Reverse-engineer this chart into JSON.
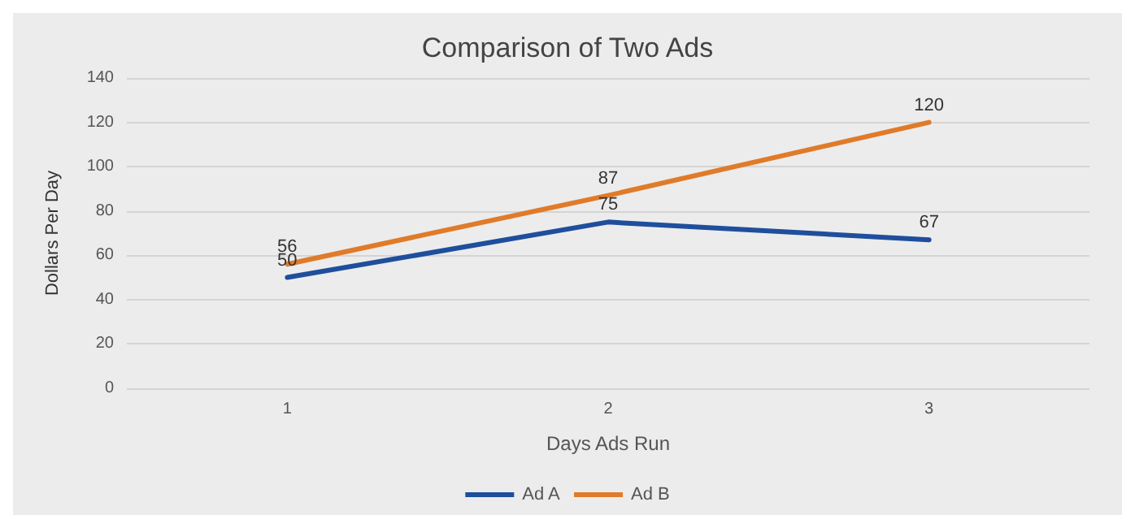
{
  "chart_data": {
    "type": "line",
    "title": "Comparison of Two Ads",
    "xlabel": "Days Ads Run",
    "ylabel": "Dollars Per Day",
    "categories": [
      "1",
      "2",
      "3"
    ],
    "series": [
      {
        "name": "Ad A",
        "color": "#1f4e9c",
        "values": [
          50,
          75,
          67
        ]
      },
      {
        "name": "Ad B",
        "color": "#e07b2a",
        "values": [
          56,
          87,
          120
        ]
      }
    ],
    "ylim": [
      0,
      140
    ],
    "yticks": [
      0,
      20,
      40,
      60,
      80,
      100,
      120,
      140
    ],
    "grid": "y",
    "legend": "bottom",
    "data_labels": true,
    "marker": "none",
    "line_style": "solid"
  }
}
